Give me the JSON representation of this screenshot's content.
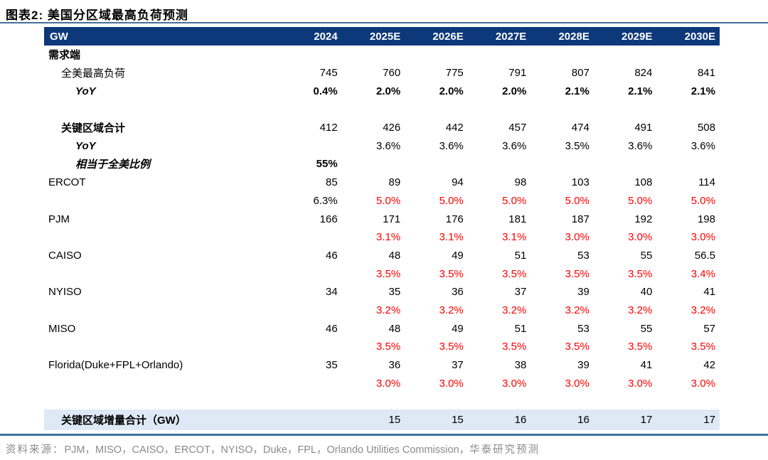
{
  "figure": {
    "title": "图表2:  美国分区域最高负荷预测"
  },
  "table": {
    "columns": [
      "GW",
      "2024",
      "2025E",
      "2026E",
      "2027E",
      "2028E",
      "2029E",
      "2030E"
    ],
    "rows": [
      {
        "label": "需求端",
        "indent": 0,
        "label_bold": true,
        "label_italic": false,
        "cells": [
          "",
          "",
          "",
          "",
          "",
          "",
          ""
        ],
        "cell_style": "plain",
        "highlight": false
      },
      {
        "label": "全美最高负荷",
        "indent": 1,
        "label_bold": false,
        "label_italic": false,
        "cells": [
          "745",
          "760",
          "775",
          "791",
          "807",
          "824",
          "841"
        ],
        "cell_style": "plain",
        "highlight": false
      },
      {
        "label": "YoY",
        "indent": 2,
        "label_bold": true,
        "label_italic": true,
        "cells": [
          "0.4%",
          "2.0%",
          "2.0%",
          "2.0%",
          "2.1%",
          "2.1%",
          "2.1%"
        ],
        "cell_style": "bold",
        "highlight": false
      },
      {
        "label": "",
        "indent": 0,
        "label_bold": false,
        "label_italic": false,
        "cells": [
          "",
          "",
          "",
          "",
          "",
          "",
          ""
        ],
        "cell_style": "plain",
        "highlight": false,
        "blank": "full"
      },
      {
        "label": "关键区域合计",
        "indent": 1,
        "label_bold": true,
        "label_italic": false,
        "cells": [
          "412",
          "426",
          "442",
          "457",
          "474",
          "491",
          "508"
        ],
        "cell_style": "plain",
        "highlight": false
      },
      {
        "label": "YoY",
        "indent": 2,
        "label_bold": true,
        "label_italic": true,
        "cells": [
          "",
          "3.6%",
          "3.6%",
          "3.6%",
          "3.5%",
          "3.6%",
          "3.6%"
        ],
        "cell_style": "plain",
        "highlight": false
      },
      {
        "label": "相当于全美比例",
        "indent": 2,
        "label_bold": true,
        "label_italic": true,
        "cells": [
          "55%",
          "",
          "",
          "",
          "",
          "",
          ""
        ],
        "cell_style": "bold",
        "highlight": false
      },
      {
        "label": "ERCOT",
        "indent": 0,
        "label_bold": false,
        "label_italic": false,
        "cells": [
          "85",
          "89",
          "94",
          "98",
          "103",
          "108",
          "114"
        ],
        "cell_style": "plain",
        "highlight": false
      },
      {
        "label": "",
        "indent": 0,
        "label_bold": false,
        "label_italic": false,
        "cells": [
          "6.3%",
          "5.0%",
          "5.0%",
          "5.0%",
          "5.0%",
          "5.0%",
          "5.0%"
        ],
        "cell_style": "red",
        "overrides": {
          "0": "plain"
        },
        "highlight": false
      },
      {
        "label": "PJM",
        "indent": 0,
        "label_bold": false,
        "label_italic": false,
        "cells": [
          "166",
          "171",
          "176",
          "181",
          "187",
          "192",
          "198"
        ],
        "cell_style": "plain",
        "highlight": false
      },
      {
        "label": "",
        "indent": 0,
        "label_bold": false,
        "label_italic": false,
        "cells": [
          "",
          "3.1%",
          "3.1%",
          "3.1%",
          "3.0%",
          "3.0%",
          "3.0%"
        ],
        "cell_style": "red",
        "highlight": false
      },
      {
        "label": "CAISO",
        "indent": 0,
        "label_bold": false,
        "label_italic": false,
        "cells": [
          "46",
          "48",
          "49",
          "51",
          "53",
          "55",
          "56.5"
        ],
        "cell_style": "plain",
        "highlight": false
      },
      {
        "label": "",
        "indent": 0,
        "label_bold": false,
        "label_italic": false,
        "cells": [
          "",
          "3.5%",
          "3.5%",
          "3.5%",
          "3.5%",
          "3.5%",
          "3.4%"
        ],
        "cell_style": "red",
        "highlight": false
      },
      {
        "label": "NYISO",
        "indent": 0,
        "label_bold": false,
        "label_italic": false,
        "cells": [
          "34",
          "35",
          "36",
          "37",
          "39",
          "40",
          "41"
        ],
        "cell_style": "plain",
        "highlight": false
      },
      {
        "label": "",
        "indent": 0,
        "label_bold": false,
        "label_italic": false,
        "cells": [
          "",
          "3.2%",
          "3.2%",
          "3.2%",
          "3.2%",
          "3.2%",
          "3.2%"
        ],
        "cell_style": "red",
        "highlight": false
      },
      {
        "label": "MISO",
        "indent": 0,
        "label_bold": false,
        "label_italic": false,
        "cells": [
          "46",
          "48",
          "49",
          "51",
          "53",
          "55",
          "57"
        ],
        "cell_style": "plain",
        "highlight": false
      },
      {
        "label": "",
        "indent": 0,
        "label_bold": false,
        "label_italic": false,
        "cells": [
          "",
          "3.5%",
          "3.5%",
          "3.5%",
          "3.5%",
          "3.5%",
          "3.5%"
        ],
        "cell_style": "red",
        "highlight": false
      },
      {
        "label": "Florida(Duke+FPL+Orlando)",
        "indent": 0,
        "label_bold": false,
        "label_italic": false,
        "cells": [
          "35",
          "36",
          "37",
          "38",
          "39",
          "41",
          "42"
        ],
        "cell_style": "plain",
        "highlight": false
      },
      {
        "label": "",
        "indent": 0,
        "label_bold": false,
        "label_italic": false,
        "cells": [
          "",
          "3.0%",
          "3.0%",
          "3.0%",
          "3.0%",
          "3.0%",
          "3.0%"
        ],
        "cell_style": "red",
        "highlight": false
      },
      {
        "label": "",
        "indent": 0,
        "label_bold": false,
        "label_italic": false,
        "cells": [
          "",
          "",
          "",
          "",
          "",
          "",
          ""
        ],
        "cell_style": "plain",
        "highlight": false,
        "blank": "small"
      },
      {
        "label": "关键区域增量合计（GW）",
        "indent": 1,
        "label_bold": true,
        "label_italic": false,
        "cells": [
          "",
          "15",
          "15",
          "16",
          "16",
          "17",
          "17"
        ],
        "cell_style": "plain",
        "highlight": true
      }
    ]
  },
  "footer": {
    "prefix": "资料来源：",
    "sources": "PJM，MISO，CAISO，ERCOT，NYISO，Duke，FPL，Orlando Utilities Commission，",
    "suffix": "华泰研究预测"
  },
  "colors": {
    "header_bg": "#0D3879",
    "rule_blue": "#41719C",
    "highlight_row_bg": "#DEE9F5",
    "negative_growth_red": "#FF0000",
    "source_gray": "#8a8a8a"
  }
}
